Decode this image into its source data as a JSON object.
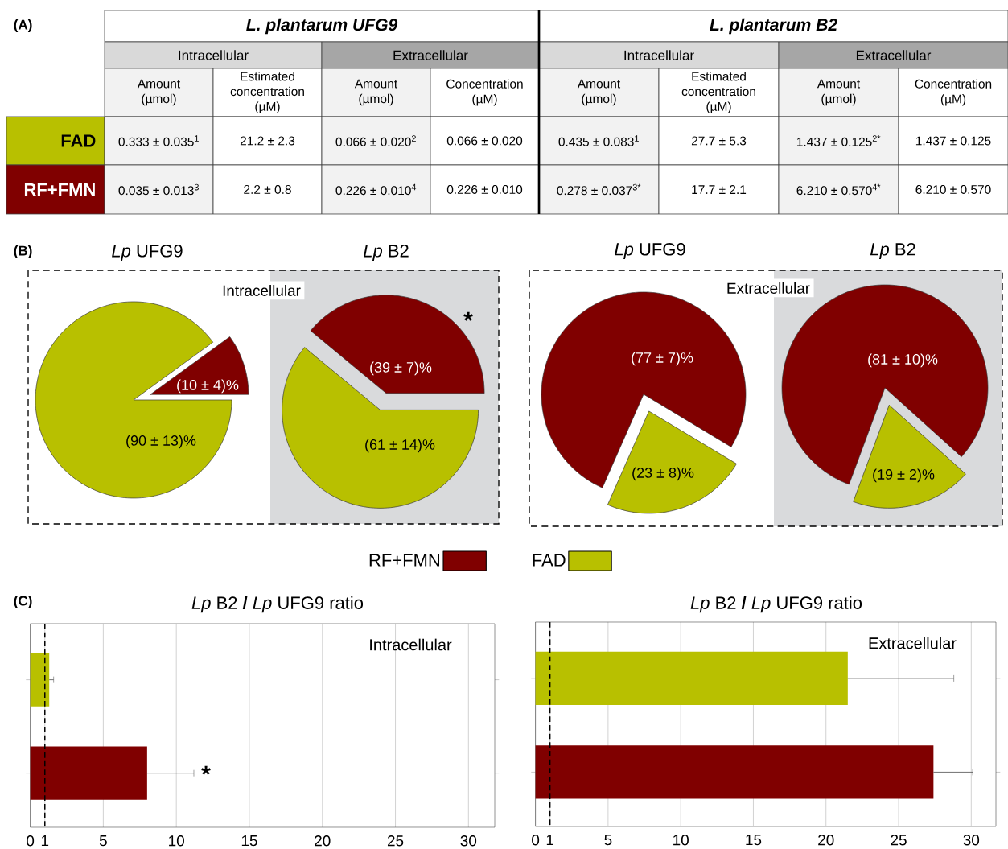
{
  "chart_data": [
    {
      "type": "other",
      "annotations": [
        "(A)",
        "L. plantarum UFG9",
        "L. plantarum B2",
        "Intracellular",
        "Extracellular",
        "Intracellular",
        "Extracellular",
        "Amount (µmol)",
        "Estimated concentration (µM)",
        "Amount (µmol)",
        "Concentration (µM)",
        "Amount (µmol)",
        "Estimated concentration (µM)",
        "Amount (µmol)",
        "Concentration (µM)",
        "FAD",
        "RF+FMN",
        "0.333 ± 0.035$^{1}$",
        "21.2 ± 2.3",
        "0.066 ± 0.020$^{2}$",
        "0.066 ± 0.020",
        "0.435 ± 0.083$^{1}$",
        "27.7 ± 5.3",
        "1.437 ± 0.125$^{2*}$",
        "1.437 ± 0.125",
        "0.035 ± 0.013$^{3}$",
        "2.2 ± 0.8",
        "0.226 ± 0.010$^{4}$",
        "0.226 ± 0.010",
        "0.278 ± 0.037$^{3*}$",
        "17.7 ± 2.1",
        "6.210 ± 0.570$^{4*}$",
        "6.210 ± 0.570"
      ]
    },
    {
      "type": "pie",
      "title": "*Lp* UFG9",
      "categories": [
        null,
        null
      ],
      "values": [
        10,
        90
      ],
      "colors": [
        "#800000",
        "#b8c000"
      ],
      "value_labels": [
        "(10 ± 4)%",
        "(90 ± 13)%"
      ],
      "annotations": [
        "(B)",
        "Intracellular"
      ]
    },
    {
      "type": "pie",
      "title": "*Lp* B2",
      "categories": [
        "RF+FMN",
        "FAD"
      ],
      "values": [
        39,
        61
      ],
      "colors": [
        "#800000",
        "#b8c000"
      ],
      "value_labels": [
        "(39 ± 7)%",
        "(61 ± 14)%"
      ],
      "annotations": [
        "*"
      ],
      "legend": "bottom"
    },
    {
      "type": "pie",
      "title": "*Lp* UFG9",
      "categories": [
        null,
        null
      ],
      "values": [
        77,
        23
      ],
      "colors": [
        "#800000",
        "#b8c000"
      ],
      "value_labels": [
        "(77 ± 7)%",
        "(23 ± 8)%"
      ],
      "annotations": [
        "Extracellular"
      ]
    },
    {
      "type": "pie",
      "title": "*Lp* B2",
      "categories": [
        null,
        null
      ],
      "values": [
        81,
        19
      ],
      "colors": [
        "#800000",
        "#b8c000"
      ],
      "value_labels": [
        "(81 ± 10)%",
        "(19 ± 2)%"
      ]
    },
    {
      "type": "bar",
      "orientation": "horizontal",
      "title": "*Lp* B2 **/** *Lp* UFG9 ratio",
      "categories": [
        null,
        null
      ],
      "values": [
        1.3,
        8.0
      ],
      "errors": [
        0.3,
        3.2
      ],
      "colors": [
        "#b8c000",
        "#800000"
      ],
      "xlim": [
        0,
        31.8
      ],
      "xticks": [
        0,
        1,
        5,
        10,
        15,
        20,
        25,
        30
      ],
      "grid": "x",
      "tick_labels": "x",
      "ref_lines": [
        {
          "axis": "x",
          "value": 1,
          "line_style": "dashed",
          "color": "#000000"
        }
      ],
      "annotations": [
        "(C)",
        "Intracellular",
        "*"
      ]
    },
    {
      "type": "bar",
      "orientation": "horizontal",
      "title": "*Lp* B2 **/** *Lp* UFG9 ratio",
      "categories": [
        null,
        null
      ],
      "values": [
        21.5,
        27.4
      ],
      "errors": [
        7.3,
        2.7
      ],
      "colors": [
        "#b8c000",
        "#800000"
      ],
      "xlim": [
        0,
        31.7
      ],
      "xticks": [
        0,
        1,
        5,
        10,
        15,
        20,
        25,
        30
      ],
      "grid": "x",
      "tick_labels": "x",
      "ref_lines": [
        {
          "axis": "x",
          "value": 1,
          "line_style": "dashed",
          "color": "#000000"
        }
      ],
      "annotations": [
        "Extracellular"
      ]
    }
  ]
}
